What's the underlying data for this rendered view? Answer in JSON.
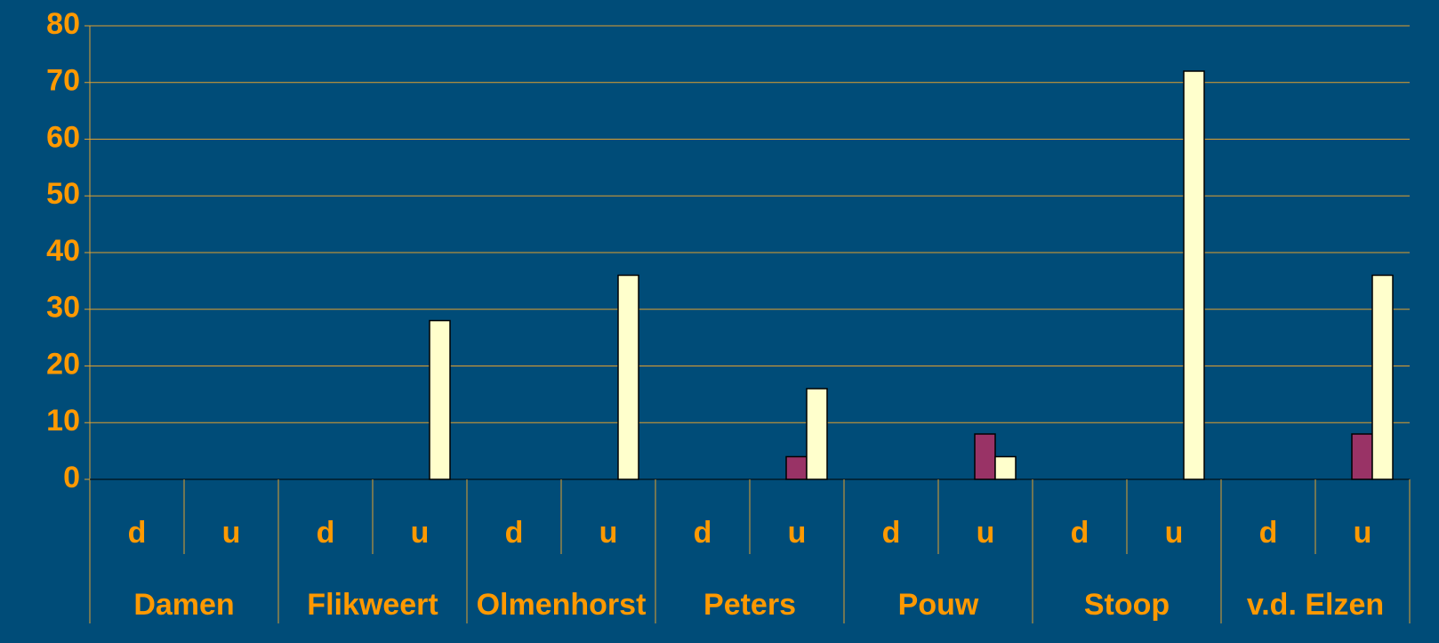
{
  "chart_data": {
    "type": "bar",
    "categories": [
      "d",
      "u",
      "d",
      "u",
      "d",
      "u",
      "d",
      "u",
      "d",
      "u",
      "d",
      "u",
      "d",
      "u"
    ],
    "groups": [
      "Damen",
      "Flikweert",
      "Olmenhorst",
      "Peters",
      "Pouw",
      "Stoop",
      "v.d. Elzen"
    ],
    "series": [
      {
        "color": "#993366",
        "values": [
          0,
          0,
          0,
          0,
          0,
          0,
          0,
          4,
          0,
          8,
          0,
          0,
          0,
          8
        ]
      },
      {
        "color": "#FFFFCC",
        "values": [
          0,
          0,
          0,
          28,
          0,
          36,
          0,
          16,
          0,
          4,
          0,
          72,
          0,
          36
        ]
      }
    ],
    "ylim": [
      0,
      80
    ],
    "yticks": [
      0,
      10,
      20,
      30,
      40,
      50,
      60,
      70,
      80
    ],
    "grid": true
  }
}
